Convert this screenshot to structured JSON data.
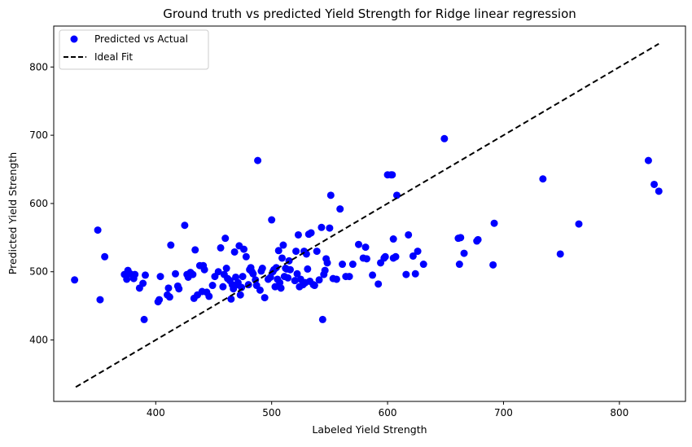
{
  "chart_data": {
    "type": "scatter",
    "title": "Ground truth vs predicted Yield Strength for Ridge linear regression",
    "xlabel": "Labeled Yield Strength",
    "ylabel": "Predicted Yield Strength",
    "xlim": [
      312,
      857
    ],
    "ylim": [
      310,
      860
    ],
    "xticks": [
      400,
      500,
      600,
      700,
      800
    ],
    "yticks": [
      400,
      500,
      600,
      700,
      800
    ],
    "grid": false,
    "legend_position": "top-left",
    "legend": [
      "Predicted vs Actual",
      "Ideal Fit"
    ],
    "colors": {
      "points": "#0000ff",
      "ideal_line": "#000000"
    },
    "series": [
      {
        "name": "Predicted vs Actual",
        "kind": "scatter",
        "x": [
          330,
          350,
          352,
          356,
          373,
          375,
          376,
          378,
          381,
          382,
          386,
          389,
          390,
          391,
          402,
          403,
          404,
          410,
          411,
          412,
          413,
          417,
          419,
          420,
          425,
          427,
          428,
          430,
          432,
          433,
          434,
          436,
          438,
          440,
          441,
          442,
          444,
          446,
          449,
          451,
          454,
          456,
          458,
          459,
          460,
          461,
          462,
          464,
          465,
          466,
          467,
          468,
          469,
          470,
          471,
          472,
          473,
          474,
          475,
          476,
          478,
          480,
          481,
          482,
          483,
          484,
          486,
          487,
          488,
          490,
          491,
          492,
          494,
          497,
          499,
          500,
          501,
          502,
          503,
          504,
          505,
          506,
          507,
          508,
          509,
          510,
          511,
          512,
          513,
          514,
          515,
          516,
          520,
          521,
          522,
          523,
          524,
          525,
          527,
          528,
          529,
          530,
          531,
          532,
          533,
          534,
          536,
          537,
          539,
          541,
          543,
          544,
          545,
          546,
          547,
          548,
          550,
          551,
          553,
          556,
          559,
          561,
          564,
          567,
          570,
          575,
          579,
          581,
          582,
          587,
          592,
          594,
          597,
          598,
          600,
          603,
          604,
          605,
          605,
          607,
          608,
          616,
          618,
          622,
          624,
          626,
          631,
          649,
          661,
          662,
          663,
          666,
          677,
          678,
          691,
          692,
          734,
          749,
          765,
          825,
          830,
          834
        ],
        "y": [
          488,
          561,
          459,
          522,
          496,
          489,
          502,
          497,
          490,
          496,
          476,
          483,
          430,
          495,
          456,
          459,
          493,
          466,
          476,
          463,
          539,
          497,
          479,
          475,
          568,
          496,
          492,
          499,
          496,
          461,
          532,
          466,
          509,
          471,
          509,
          503,
          470,
          464,
          480,
          493,
          500,
          535,
          478,
          496,
          549,
          505,
          490,
          487,
          460,
          481,
          475,
          529,
          492,
          481,
          484,
          538,
          466,
          477,
          493,
          533,
          522,
          481,
          503,
          506,
          500,
          497,
          488,
          480,
          663,
          473,
          501,
          505,
          462,
          489,
          492,
          576,
          500,
          503,
          478,
          506,
          489,
          531,
          484,
          476,
          520,
          539,
          493,
          505,
          504,
          491,
          516,
          503,
          487,
          530,
          497,
          554,
          478,
          489,
          481,
          530,
          484,
          526,
          504,
          555,
          486,
          557,
          481,
          480,
          530,
          488,
          565,
          430,
          496,
          502,
          519,
          513,
          564,
          612,
          490,
          489,
          592,
          511,
          493,
          493,
          511,
          540,
          520,
          536,
          519,
          495,
          482,
          513,
          520,
          522,
          642,
          642,
          642,
          548,
          520,
          522,
          612,
          496,
          554,
          523,
          497,
          530,
          511,
          695,
          549,
          511,
          550,
          527,
          545,
          547,
          510,
          571,
          636,
          526,
          570,
          663,
          628,
          618
        ]
      },
      {
        "name": "Ideal Fit",
        "kind": "line",
        "style": "dashed",
        "x": [
          331,
          834
        ],
        "y": [
          331,
          834
        ]
      }
    ]
  }
}
